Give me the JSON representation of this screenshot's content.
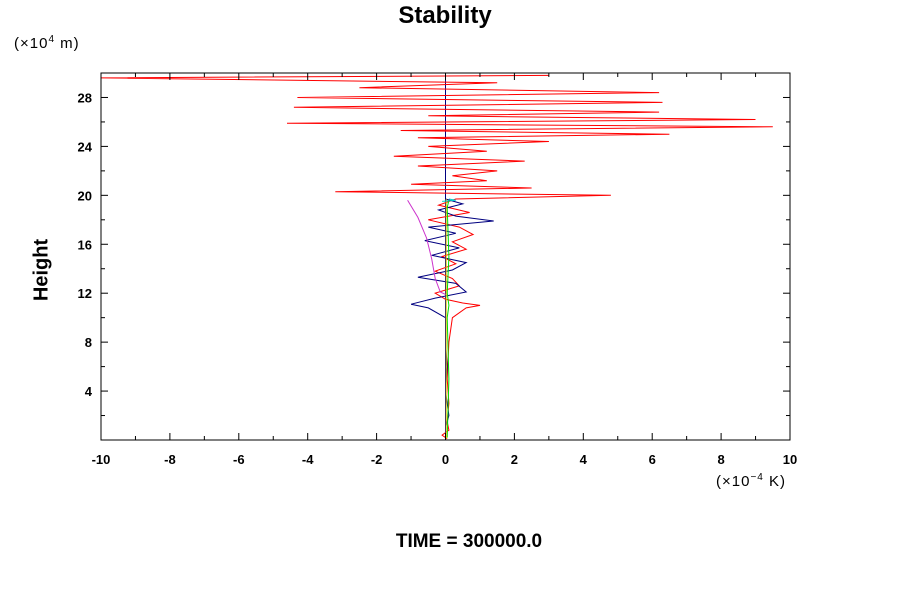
{
  "chart_data": {
    "type": "line",
    "title": "Stability",
    "ylabel": "Height",
    "y_unit": {
      "prefix": "(×10",
      "exp": "4",
      "suffix": " m)"
    },
    "x_unit": {
      "prefix": "(×10",
      "exp": "−4",
      "suffix": " K)"
    },
    "footer": "TIME = 300000.0",
    "xlim": [
      -10,
      10
    ],
    "ylim": [
      0,
      30
    ],
    "x_ticks": [
      -10,
      -8,
      -6,
      -4,
      -2,
      0,
      2,
      4,
      6,
      8,
      10
    ],
    "y_ticks": [
      4,
      8,
      12,
      16,
      20,
      24,
      28
    ],
    "series": [
      {
        "color": "#ff0000",
        "points": [
          [
            0.05,
            0.1
          ],
          [
            -0.1,
            0.4
          ],
          [
            0.1,
            0.8
          ],
          [
            0.05,
            1.5
          ],
          [
            0.1,
            3
          ],
          [
            0.05,
            5
          ],
          [
            0.1,
            8
          ],
          [
            0.2,
            10
          ],
          [
            0.6,
            10.8
          ],
          [
            1.0,
            11.0
          ],
          [
            0.5,
            11.2
          ],
          [
            0,
            11.5
          ],
          [
            -0.3,
            12
          ],
          [
            0.4,
            12.6
          ],
          [
            0.2,
            13.2
          ],
          [
            -0.3,
            13.8
          ],
          [
            0.3,
            14.4
          ],
          [
            -0.1,
            15
          ],
          [
            0.6,
            15.6
          ],
          [
            0.2,
            16.2
          ],
          [
            0.8,
            16.8
          ],
          [
            0.4,
            17.4
          ],
          [
            -0.5,
            18
          ],
          [
            0.7,
            18.6
          ],
          [
            -0.2,
            19.2
          ],
          [
            0.3,
            19.7
          ],
          [
            4.8,
            20.0
          ],
          [
            -3.2,
            20.3
          ],
          [
            2.5,
            20.6
          ],
          [
            -1.0,
            20.9
          ],
          [
            1.2,
            21.2
          ],
          [
            0.2,
            21.6
          ],
          [
            1.5,
            22.0
          ],
          [
            -0.8,
            22.4
          ],
          [
            2.3,
            22.8
          ],
          [
            -1.5,
            23.2
          ],
          [
            1.2,
            23.6
          ],
          [
            -0.5,
            24.0
          ],
          [
            3.0,
            24.4
          ],
          [
            -0.8,
            24.7
          ],
          [
            6.5,
            25.0
          ],
          [
            -1.3,
            25.3
          ],
          [
            9.5,
            25.6
          ],
          [
            -4.6,
            25.9
          ],
          [
            9.0,
            26.2
          ],
          [
            -0.5,
            26.5
          ],
          [
            6.2,
            26.8
          ],
          [
            -4.4,
            27.2
          ],
          [
            6.3,
            27.6
          ],
          [
            -4.3,
            28.0
          ],
          [
            6.2,
            28.4
          ],
          [
            -2.5,
            28.8
          ],
          [
            1.5,
            29.2
          ],
          [
            -10,
            29.6
          ],
          [
            3.0,
            29.8
          ]
        ]
      },
      {
        "color": "#000080",
        "points": [
          [
            0,
            0.1
          ],
          [
            0,
            1
          ],
          [
            0.1,
            2
          ],
          [
            0,
            4
          ],
          [
            0.05,
            6
          ],
          [
            0,
            8
          ],
          [
            0,
            10
          ],
          [
            -0.5,
            10.8
          ],
          [
            -1.0,
            11.1
          ],
          [
            -0.3,
            11.6
          ],
          [
            0.6,
            12.1
          ],
          [
            0.3,
            12.8
          ],
          [
            -0.8,
            13.3
          ],
          [
            0.2,
            13.9
          ],
          [
            0.6,
            14.5
          ],
          [
            -0.4,
            15.1
          ],
          [
            0.4,
            15.7
          ],
          [
            -0.6,
            16.3
          ],
          [
            0.3,
            16.9
          ],
          [
            -0.5,
            17.4
          ],
          [
            1.4,
            17.9
          ],
          [
            0.3,
            18.3
          ],
          [
            -0.2,
            18.8
          ],
          [
            0.5,
            19.3
          ],
          [
            0,
            19.7
          ]
        ]
      },
      {
        "color": "#cc33cc",
        "points": [
          [
            -1.1,
            19.6
          ],
          [
            -0.8,
            18.2
          ],
          [
            -0.55,
            16.5
          ],
          [
            -0.4,
            14.8
          ],
          [
            -0.3,
            13.2
          ],
          [
            -0.15,
            12.1
          ],
          [
            0,
            11.9
          ]
        ]
      },
      {
        "color": "#00dd00",
        "points": [
          [
            0.05,
            0.2
          ],
          [
            0.1,
            5
          ],
          [
            0.05,
            10
          ],
          [
            0.1,
            11
          ],
          [
            0.05,
            12
          ],
          [
            0.1,
            15
          ],
          [
            0.05,
            19
          ],
          [
            0.1,
            19.6
          ]
        ]
      },
      {
        "color": "#e6c800",
        "points": [
          [
            0.02,
            0.1
          ],
          [
            0.02,
            10
          ],
          [
            0.02,
            19.7
          ]
        ]
      },
      {
        "color": "#00cccc",
        "points": [
          [
            -0.1,
            19.5
          ],
          [
            0.3,
            19.6
          ],
          [
            0.1,
            19.7
          ]
        ]
      }
    ]
  }
}
